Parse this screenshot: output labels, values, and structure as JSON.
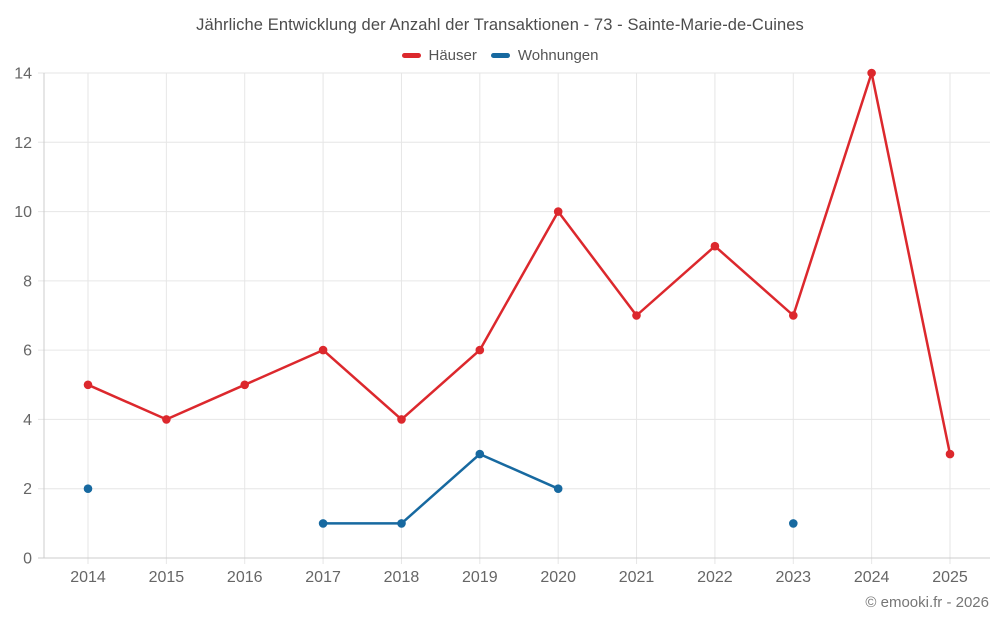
{
  "title": "Jährliche Entwicklung der Anzahl der Transaktionen - 73 - Sainte-Marie-de-Cuines",
  "footer": "© emooki.fr - 2026",
  "colors": {
    "red": "#dc282d",
    "blue": "#1769a0",
    "grid": "#e6e6e6",
    "axis": "#cccccc",
    "tick_text": "#666666",
    "title_text": "#4c4c4c",
    "legend_text": "#555555",
    "footer_text": "#767676"
  },
  "chart_data": {
    "type": "line",
    "title": "Jährliche Entwicklung der Anzahl der Transaktionen - 73 - Sainte-Marie-de-Cuines",
    "categories": [
      "2014",
      "2015",
      "2016",
      "2017",
      "2018",
      "2019",
      "2020",
      "2021",
      "2022",
      "2023",
      "2024",
      "2025"
    ],
    "series": [
      {
        "name": "Häuser",
        "color": "#dc282d",
        "values": [
          5,
          4,
          5,
          6,
          4,
          6,
          10,
          7,
          9,
          7,
          14,
          3
        ]
      },
      {
        "name": "Wohnungen",
        "color": "#1769a0",
        "values": [
          2,
          null,
          null,
          1,
          1,
          3,
          2,
          null,
          null,
          1,
          null,
          null
        ]
      }
    ],
    "xlabel": "",
    "ylabel": "",
    "ylim": [
      0,
      14
    ],
    "ytick_step": 2,
    "yticks": [
      0,
      2,
      4,
      6,
      8,
      10,
      12,
      14
    ],
    "grid": true,
    "legend_position": "top"
  }
}
